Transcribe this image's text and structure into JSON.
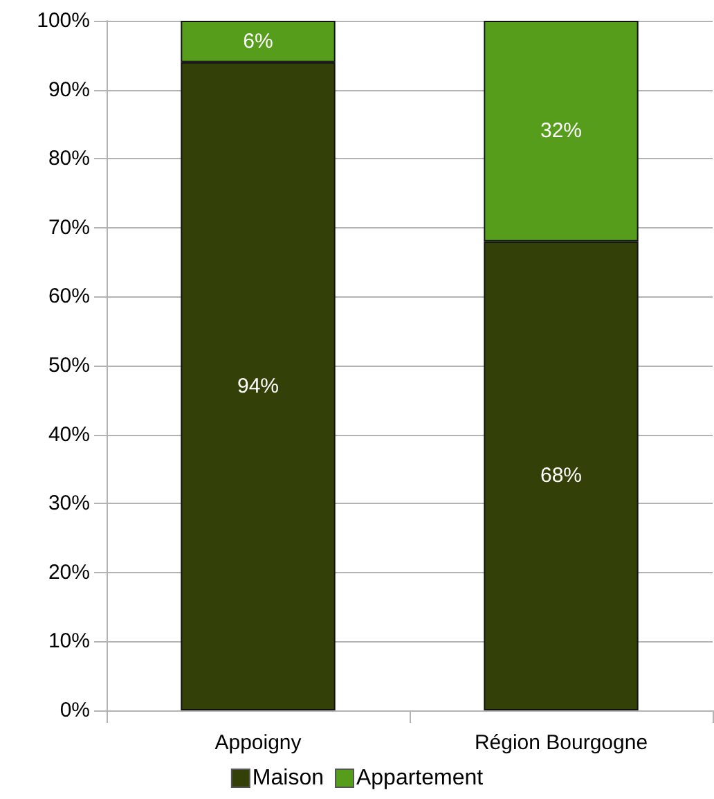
{
  "chart_data": {
    "type": "bar",
    "stacked": true,
    "categories": [
      "Appoigny",
      "Région Bourgogne"
    ],
    "series": [
      {
        "name": "Maison",
        "color": "#334007",
        "values": [
          94,
          68
        ],
        "value_labels": [
          "94%",
          "68%"
        ]
      },
      {
        "name": "Appartement",
        "color": "#579d1c",
        "values": [
          6,
          32
        ],
        "value_labels": [
          "6%",
          "32%"
        ]
      }
    ],
    "ylim": [
      0,
      100
    ],
    "yticks": [
      {
        "value": 0,
        "label": "0%"
      },
      {
        "value": 10,
        "label": "10%"
      },
      {
        "value": 20,
        "label": "20%"
      },
      {
        "value": 30,
        "label": "30%"
      },
      {
        "value": 40,
        "label": "40%"
      },
      {
        "value": 50,
        "label": "50%"
      },
      {
        "value": 60,
        "label": "60%"
      },
      {
        "value": 70,
        "label": "70%"
      },
      {
        "value": 80,
        "label": "80%"
      },
      {
        "value": 90,
        "label": "90%"
      },
      {
        "value": 100,
        "label": "100%"
      }
    ],
    "grid": "y",
    "legend": "bottom"
  }
}
